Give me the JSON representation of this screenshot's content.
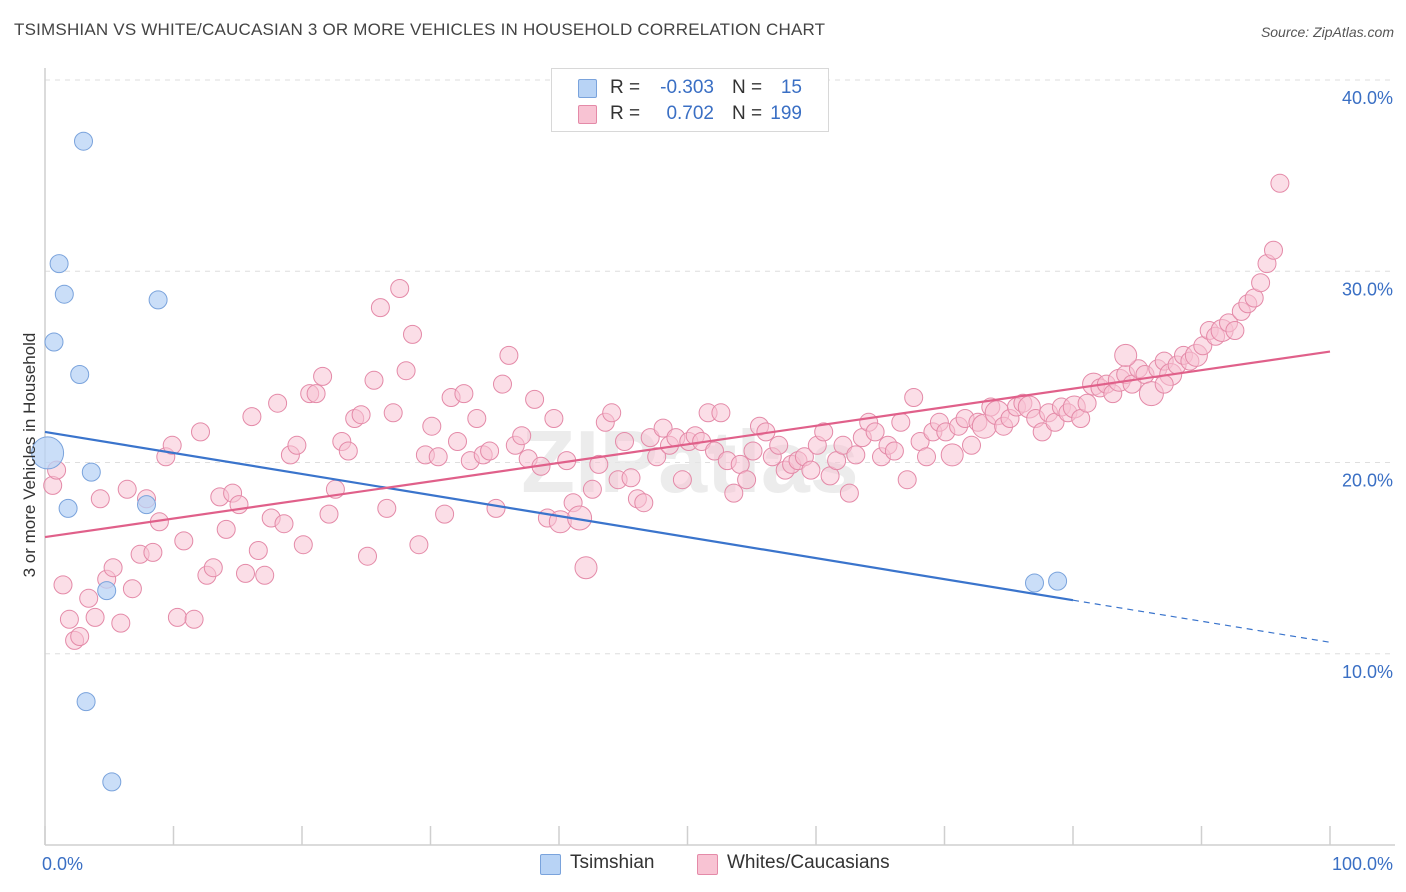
{
  "title": "TSIMSHIAN VS WHITE/CAUCASIAN 3 OR MORE VEHICLES IN HOUSEHOLD CORRELATION CHART",
  "source": "Source: ZipAtlas.com",
  "watermark": "ZIPatlas",
  "legend": {
    "rows": [
      {
        "r_label": "R =",
        "r_value": "-0.303",
        "n_label": "N =",
        "n_value": "15",
        "color": "#b8d3f5",
        "border": "#7aa3dc"
      },
      {
        "r_label": "R =",
        "r_value": "0.702",
        "n_label": "N = ",
        "n_value": "199",
        "color": "#f8c3d3",
        "border": "#e48aa8"
      }
    ]
  },
  "bottom_legend": [
    {
      "label": "Tsimshian",
      "color": "#b8d3f5",
      "border": "#7aa3dc"
    },
    {
      "label": "Whites/Caucasians",
      "color": "#f8c3d3",
      "border": "#e48aa8"
    }
  ],
  "chart_data": {
    "type": "scatter",
    "xlabel": "",
    "ylabel": "3 or more Vehicles in Household",
    "x_ticks": [
      "0.0%",
      "100.0%"
    ],
    "y_ticks": [
      "10.0%",
      "20.0%",
      "30.0%",
      "40.0%"
    ],
    "xlim": [
      0,
      100
    ],
    "ylim": [
      0,
      40
    ],
    "grid": true,
    "series": [
      {
        "name": "Tsimshian",
        "color": "#b8d3f5",
        "stroke": "#7aa3dc",
        "trend_color": "#3a74cc",
        "trend": {
          "x0": 0,
          "y0": 21.6,
          "x1": 80,
          "y1": 12.8,
          "dash_to": 100,
          "dash_y": 10.6
        },
        "points": [
          [
            0.2,
            20.5,
            16
          ],
          [
            3.0,
            36.8,
            9
          ],
          [
            1.1,
            30.4,
            9
          ],
          [
            1.5,
            28.8,
            9
          ],
          [
            0.7,
            26.3,
            9
          ],
          [
            2.7,
            24.6,
            9
          ],
          [
            8.8,
            28.5,
            9
          ],
          [
            3.6,
            19.5,
            9
          ],
          [
            1.8,
            17.6,
            9
          ],
          [
            7.9,
            17.8,
            9
          ],
          [
            4.8,
            13.3,
            9
          ],
          [
            3.2,
            7.5,
            9
          ],
          [
            5.2,
            3.3,
            9
          ],
          [
            77.0,
            13.7,
            9
          ],
          [
            78.8,
            13.8,
            9
          ]
        ]
      },
      {
        "name": "Whites/Caucasians",
        "color": "#f8c3d3",
        "stroke": "#e48aa8",
        "trend_color": "#e0608a",
        "trend": {
          "x0": 0,
          "y0": 16.1,
          "x1": 100,
          "y1": 25.8
        },
        "points": [
          [
            0.6,
            18.8,
            9
          ],
          [
            0.9,
            19.6,
            9
          ],
          [
            1.4,
            13.6,
            9
          ],
          [
            1.9,
            11.8,
            9
          ],
          [
            2.3,
            10.7,
            9
          ],
          [
            2.7,
            10.9,
            9
          ],
          [
            3.4,
            12.9,
            9
          ],
          [
            3.9,
            11.9,
            9
          ],
          [
            4.3,
            18.1,
            9
          ],
          [
            4.8,
            13.9,
            9
          ],
          [
            5.3,
            14.5,
            9
          ],
          [
            5.9,
            11.6,
            9
          ],
          [
            6.4,
            18.6,
            9
          ],
          [
            6.8,
            13.4,
            9
          ],
          [
            7.4,
            15.2,
            9
          ],
          [
            7.9,
            18.1,
            9
          ],
          [
            8.4,
            15.3,
            9
          ],
          [
            8.9,
            16.9,
            9
          ],
          [
            9.4,
            20.3,
            9
          ],
          [
            9.9,
            20.9,
            9
          ],
          [
            10.3,
            11.9,
            9
          ],
          [
            10.8,
            15.9,
            9
          ],
          [
            11.6,
            11.8,
            9
          ],
          [
            12.1,
            21.6,
            9
          ],
          [
            12.6,
            14.1,
            9
          ],
          [
            13.1,
            14.5,
            9
          ],
          [
            13.6,
            18.2,
            9
          ],
          [
            14.1,
            16.5,
            9
          ],
          [
            14.6,
            18.4,
            9
          ],
          [
            15.1,
            17.8,
            9
          ],
          [
            15.6,
            14.2,
            9
          ],
          [
            16.1,
            22.4,
            9
          ],
          [
            16.6,
            15.4,
            9
          ],
          [
            17.1,
            14.1,
            9
          ],
          [
            17.6,
            17.1,
            9
          ],
          [
            18.1,
            23.1,
            9
          ],
          [
            18.6,
            16.8,
            9
          ],
          [
            19.1,
            20.4,
            9
          ],
          [
            19.6,
            20.9,
            9
          ],
          [
            20.1,
            15.7,
            9
          ],
          [
            20.6,
            23.6,
            9
          ],
          [
            21.1,
            23.6,
            9
          ],
          [
            21.6,
            24.5,
            9
          ],
          [
            22.1,
            17.3,
            9
          ],
          [
            22.6,
            18.6,
            9
          ],
          [
            23.1,
            21.1,
            9
          ],
          [
            23.6,
            20.6,
            9
          ],
          [
            24.1,
            22.3,
            9
          ],
          [
            24.6,
            22.5,
            9
          ],
          [
            25.1,
            15.1,
            9
          ],
          [
            25.6,
            24.3,
            9
          ],
          [
            26.1,
            28.1,
            9
          ],
          [
            26.6,
            17.6,
            9
          ],
          [
            27.1,
            22.6,
            9
          ],
          [
            27.6,
            29.1,
            9
          ],
          [
            28.1,
            24.8,
            9
          ],
          [
            28.6,
            26.7,
            9
          ],
          [
            29.1,
            15.7,
            9
          ],
          [
            29.6,
            20.4,
            9
          ],
          [
            30.1,
            21.9,
            9
          ],
          [
            30.6,
            20.3,
            9
          ],
          [
            31.1,
            17.3,
            9
          ],
          [
            31.6,
            23.4,
            9
          ],
          [
            32.1,
            21.1,
            9
          ],
          [
            32.6,
            23.6,
            9
          ],
          [
            33.1,
            20.1,
            9
          ],
          [
            33.6,
            22.3,
            9
          ],
          [
            34.1,
            20.4,
            9
          ],
          [
            34.6,
            20.6,
            9
          ],
          [
            35.1,
            17.6,
            9
          ],
          [
            35.6,
            24.1,
            9
          ],
          [
            36.1,
            25.6,
            9
          ],
          [
            36.6,
            20.9,
            9
          ],
          [
            37.1,
            21.4,
            9
          ],
          [
            37.6,
            20.2,
            9
          ],
          [
            38.1,
            23.3,
            9
          ],
          [
            38.6,
            19.8,
            9
          ],
          [
            39.1,
            17.1,
            9
          ],
          [
            39.6,
            22.3,
            9
          ],
          [
            40.1,
            16.9,
            11
          ],
          [
            40.6,
            20.1,
            9
          ],
          [
            41.1,
            17.9,
            9
          ],
          [
            41.6,
            17.1,
            12
          ],
          [
            42.1,
            14.5,
            11
          ],
          [
            42.6,
            18.6,
            9
          ],
          [
            43.1,
            19.9,
            9
          ],
          [
            43.6,
            22.1,
            9
          ],
          [
            44.1,
            22.6,
            9
          ],
          [
            44.6,
            19.1,
            9
          ],
          [
            45.1,
            21.1,
            9
          ],
          [
            45.6,
            19.2,
            9
          ],
          [
            46.1,
            18.1,
            9
          ],
          [
            46.6,
            17.9,
            9
          ],
          [
            47.1,
            21.3,
            9
          ],
          [
            47.6,
            20.3,
            9
          ],
          [
            48.1,
            21.8,
            9
          ],
          [
            48.6,
            20.9,
            9
          ],
          [
            49.1,
            21.3,
            9
          ],
          [
            49.6,
            19.1,
            9
          ],
          [
            50.1,
            21.1,
            9
          ],
          [
            50.6,
            21.4,
            9
          ],
          [
            51.1,
            21.1,
            9
          ],
          [
            51.6,
            22.6,
            9
          ],
          [
            52.1,
            20.6,
            9
          ],
          [
            52.6,
            22.6,
            9
          ],
          [
            53.1,
            20.1,
            9
          ],
          [
            53.6,
            18.4,
            9
          ],
          [
            54.1,
            19.9,
            9
          ],
          [
            54.6,
            19.1,
            9
          ],
          [
            55.1,
            20.6,
            9
          ],
          [
            55.6,
            21.9,
            9
          ],
          [
            56.1,
            21.6,
            9
          ],
          [
            56.6,
            20.3,
            9
          ],
          [
            57.1,
            20.9,
            9
          ],
          [
            57.6,
            19.6,
            9
          ],
          [
            58.1,
            19.9,
            9
          ],
          [
            58.6,
            20.1,
            9
          ],
          [
            59.1,
            20.3,
            9
          ],
          [
            59.6,
            19.6,
            9
          ],
          [
            60.1,
            20.9,
            9
          ],
          [
            60.6,
            21.6,
            9
          ],
          [
            61.1,
            19.3,
            9
          ],
          [
            61.6,
            20.1,
            9
          ],
          [
            62.1,
            20.9,
            9
          ],
          [
            62.6,
            18.4,
            9
          ],
          [
            63.1,
            20.4,
            9
          ],
          [
            63.6,
            21.3,
            9
          ],
          [
            64.1,
            22.1,
            9
          ],
          [
            64.6,
            21.6,
            9
          ],
          [
            65.1,
            20.3,
            9
          ],
          [
            65.6,
            20.9,
            9
          ],
          [
            66.1,
            20.6,
            9
          ],
          [
            66.6,
            22.1,
            9
          ],
          [
            67.1,
            19.1,
            9
          ],
          [
            67.6,
            23.4,
            9
          ],
          [
            68.1,
            21.1,
            9
          ],
          [
            68.6,
            20.3,
            9
          ],
          [
            69.1,
            21.6,
            9
          ],
          [
            69.6,
            22.1,
            9
          ],
          [
            70.1,
            21.6,
            9
          ],
          [
            70.6,
            20.4,
            11
          ],
          [
            71.1,
            21.9,
            9
          ],
          [
            71.6,
            22.3,
            9
          ],
          [
            72.1,
            20.9,
            9
          ],
          [
            72.6,
            22.1,
            9
          ],
          [
            73.1,
            21.9,
            12
          ],
          [
            73.6,
            22.9,
            9
          ],
          [
            74.1,
            22.6,
            12
          ],
          [
            74.6,
            21.9,
            9
          ],
          [
            75.1,
            22.3,
            9
          ],
          [
            75.6,
            22.9,
            9
          ],
          [
            76.1,
            23.1,
            9
          ],
          [
            76.6,
            22.9,
            11
          ],
          [
            77.1,
            22.3,
            9
          ],
          [
            77.6,
            21.6,
            9
          ],
          [
            78.1,
            22.6,
            9
          ],
          [
            78.6,
            22.1,
            9
          ],
          [
            79.1,
            22.9,
            9
          ],
          [
            79.6,
            22.6,
            9
          ],
          [
            80.1,
            22.9,
            11
          ],
          [
            80.6,
            22.3,
            9
          ],
          [
            81.1,
            23.1,
            9
          ],
          [
            81.6,
            24.1,
            11
          ],
          [
            82.1,
            23.9,
            9
          ],
          [
            82.6,
            24.1,
            9
          ],
          [
            83.1,
            23.6,
            9
          ],
          [
            83.6,
            24.3,
            11
          ],
          [
            84.1,
            24.6,
            9
          ],
          [
            84.6,
            24.1,
            9
          ],
          [
            85.1,
            24.9,
            9
          ],
          [
            85.6,
            24.6,
            9
          ],
          [
            86.1,
            23.6,
            12
          ],
          [
            86.6,
            24.9,
            9
          ],
          [
            87.1,
            25.3,
            9
          ],
          [
            87.6,
            24.6,
            11
          ],
          [
            88.1,
            25.1,
            9
          ],
          [
            88.6,
            25.6,
            9
          ],
          [
            89.1,
            25.3,
            9
          ],
          [
            89.6,
            25.6,
            11
          ],
          [
            90.1,
            26.1,
            9
          ],
          [
            90.6,
            26.9,
            9
          ],
          [
            91.1,
            26.6,
            9
          ],
          [
            91.6,
            26.9,
            11
          ],
          [
            92.1,
            27.3,
            9
          ],
          [
            92.6,
            26.9,
            9
          ],
          [
            93.1,
            27.9,
            9
          ],
          [
            93.6,
            28.3,
            9
          ],
          [
            94.1,
            28.6,
            9
          ],
          [
            94.6,
            29.4,
            9
          ],
          [
            95.1,
            30.4,
            9
          ],
          [
            95.6,
            31.1,
            9
          ],
          [
            96.1,
            34.6,
            9
          ],
          [
            84.1,
            25.6,
            11
          ],
          [
            87.1,
            24.1,
            9
          ]
        ]
      }
    ]
  }
}
